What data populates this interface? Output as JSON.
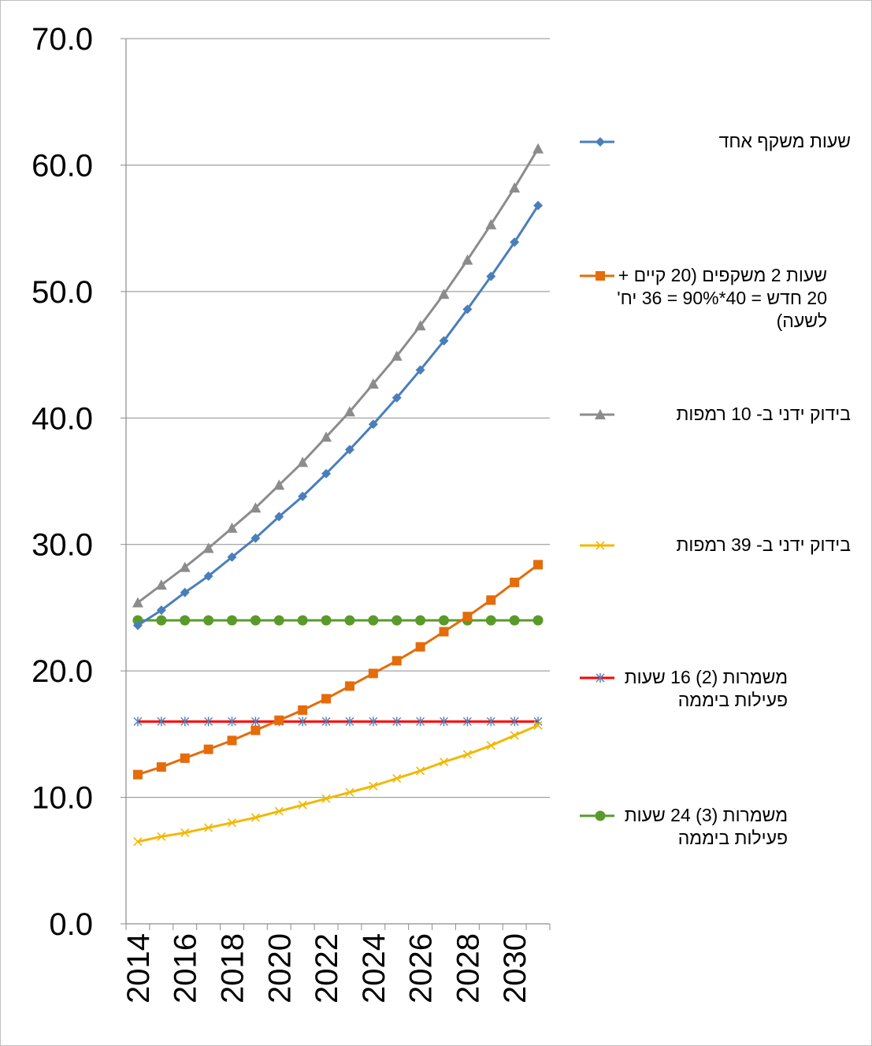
{
  "chart_data": {
    "type": "line",
    "x": [
      2014,
      2015,
      2016,
      2017,
      2018,
      2019,
      2020,
      2021,
      2022,
      2023,
      2024,
      2025,
      2026,
      2027,
      2028,
      2029,
      2030,
      2031
    ],
    "x_tick_labels": [
      "2014",
      "2016",
      "2018",
      "2020",
      "2022",
      "2024",
      "2026",
      "2028",
      "2030"
    ],
    "y_tick_labels": [
      "0.0",
      "10.0",
      "20.0",
      "30.0",
      "40.0",
      "50.0",
      "60.0",
      "70.0"
    ],
    "ylim": [
      0,
      70
    ],
    "grid": true,
    "legend_position": "right",
    "series": [
      {
        "name": "שעות משקף אחד",
        "color": "#4a7ebb",
        "marker": "diamond",
        "values": [
          23.6,
          24.8,
          26.2,
          27.5,
          29.0,
          30.5,
          32.2,
          33.8,
          35.6,
          37.5,
          39.5,
          41.6,
          43.8,
          46.1,
          48.6,
          51.2,
          53.9,
          56.8
        ]
      },
      {
        "name": "שעות 2 משקפים (20 קיים + 20 חדש = 40*90% = 36 יח' לשעה)",
        "color": "#e46c0a",
        "marker": "square",
        "values": [
          11.8,
          12.4,
          13.1,
          13.8,
          14.5,
          15.3,
          16.1,
          16.9,
          17.8,
          18.8,
          19.8,
          20.8,
          21.9,
          23.1,
          24.3,
          25.6,
          27.0,
          28.4
        ]
      },
      {
        "name": "בידוק ידני ב- 10 רמפות",
        "color": "#8c8c8c",
        "marker": "triangle",
        "values": [
          25.4,
          26.8,
          28.2,
          29.7,
          31.3,
          32.9,
          34.7,
          36.5,
          38.5,
          40.5,
          42.7,
          44.9,
          47.3,
          49.8,
          52.5,
          55.3,
          58.2,
          61.3
        ]
      },
      {
        "name": "בידוק ידני ב- 39 רמפות",
        "color": "#f2b800",
        "marker": "x",
        "values": [
          6.5,
          6.9,
          7.2,
          7.6,
          8.0,
          8.4,
          8.9,
          9.4,
          9.9,
          10.4,
          10.9,
          11.5,
          12.1,
          12.8,
          13.4,
          14.1,
          14.9,
          15.7
        ]
      },
      {
        "name": "משמרות (2) 16 שעות פעילות ביממה",
        "color": "#ff0000",
        "marker": "star",
        "marker_color": "#4a7ebb",
        "values": [
          16,
          16,
          16,
          16,
          16,
          16,
          16,
          16,
          16,
          16,
          16,
          16,
          16,
          16,
          16,
          16,
          16,
          16
        ]
      },
      {
        "name": "משמרות (3) 24 שעות פעילות ביממה",
        "color": "#5a9a2a",
        "marker": "circle",
        "values": [
          24,
          24,
          24,
          24,
          24,
          24,
          24,
          24,
          24,
          24,
          24,
          24,
          24,
          24,
          24,
          24,
          24,
          24
        ]
      }
    ]
  },
  "legend": {
    "items": [
      {
        "text": "שעות משקף אחד"
      },
      {
        "text": "שעות 2 משקפים (20 קיים + 20 חדש = 40*90% = 36 יח' לשעה)"
      },
      {
        "text": "בידוק ידני ב- 10 רמפות"
      },
      {
        "text": "בידוק ידני ב- 39 רמפות"
      },
      {
        "text": "משמרות (2) 16 שעות פעילות ביממה"
      },
      {
        "text": "משמרות (3) 24 שעות פעילות ביממה"
      }
    ]
  }
}
